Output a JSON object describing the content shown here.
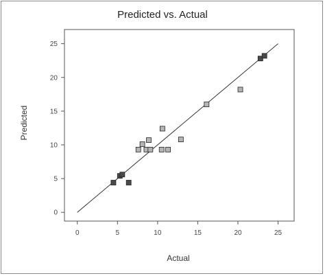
{
  "chart_data": {
    "type": "scatter",
    "title": "Predicted vs. Actual",
    "xlabel": "Actual",
    "ylabel": "Predicted",
    "xlim": [
      -1.6,
      27.0
    ],
    "ylim": [
      -1.3,
      27.1
    ],
    "x_ticks": [
      0,
      5,
      10,
      15,
      20,
      25
    ],
    "y_ticks": [
      0,
      5,
      10,
      15,
      20,
      25
    ],
    "grid": false,
    "reference_line": {
      "from": [
        0,
        0
      ],
      "to": [
        25,
        25
      ]
    },
    "points": [
      {
        "x": 4.5,
        "y": 4.4,
        "shade": "#4a4a4a"
      },
      {
        "x": 5.3,
        "y": 5.4,
        "shade": "#4a4a4a"
      },
      {
        "x": 5.6,
        "y": 5.6,
        "shade": "#4a4a4a"
      },
      {
        "x": 6.4,
        "y": 4.4,
        "shade": "#4a4a4a"
      },
      {
        "x": 7.6,
        "y": 9.3,
        "shade": "#b4b4b4"
      },
      {
        "x": 8.1,
        "y": 10.1,
        "shade": "#b4b4b4"
      },
      {
        "x": 8.6,
        "y": 9.3,
        "shade": "#b4b4b4"
      },
      {
        "x": 8.9,
        "y": 10.7,
        "shade": "#b4b4b4"
      },
      {
        "x": 9.1,
        "y": 9.3,
        "shade": "#b4b4b4"
      },
      {
        "x": 10.5,
        "y": 9.3,
        "shade": "#b4b4b4"
      },
      {
        "x": 10.6,
        "y": 12.4,
        "shade": "#b4b4b4"
      },
      {
        "x": 11.3,
        "y": 9.3,
        "shade": "#b4b4b4"
      },
      {
        "x": 12.9,
        "y": 10.8,
        "shade": "#b4b4b4"
      },
      {
        "x": 16.1,
        "y": 16.0,
        "shade": "#b4b4b4"
      },
      {
        "x": 20.3,
        "y": 18.2,
        "shade": "#b4b4b4"
      },
      {
        "x": 22.8,
        "y": 22.8,
        "shade": "#4a4a4a"
      },
      {
        "x": 23.3,
        "y": 23.2,
        "shade": "#4a4a4a"
      }
    ]
  }
}
